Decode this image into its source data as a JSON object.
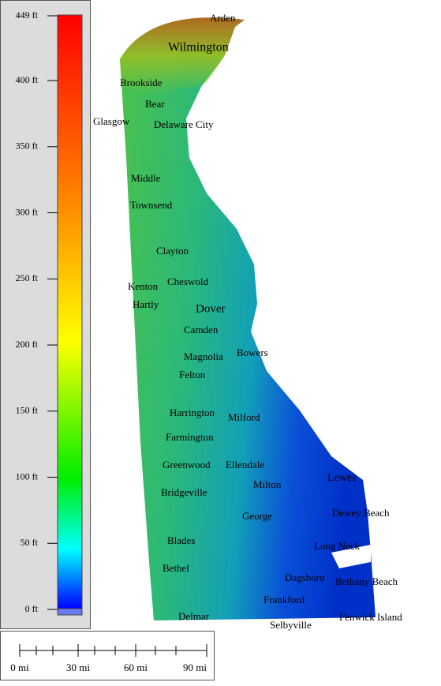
{
  "legend": {
    "min": 0,
    "max": 449,
    "ticks": [
      {
        "value": 449,
        "label": "449 ft"
      },
      {
        "value": 400,
        "label": "400 ft"
      },
      {
        "value": 350,
        "label": "350 ft"
      },
      {
        "value": 300,
        "label": "300 ft"
      },
      {
        "value": 250,
        "label": "250 ft"
      },
      {
        "value": 200,
        "label": "200 ft"
      },
      {
        "value": 150,
        "label": "150 ft"
      },
      {
        "value": 100,
        "label": "100 ft"
      },
      {
        "value": 50,
        "label": "50 ft"
      },
      {
        "value": 0,
        "label": "0 ft"
      }
    ]
  },
  "places": [
    "Arden",
    "Wilmington",
    "Brookside",
    "Bear",
    "Glasgow",
    "Delaware City",
    "Middle",
    "Townsend",
    "Clayton",
    "Kenton",
    "Cheswold",
    "Hartly",
    "Dover",
    "Camden",
    "Bowers",
    "Magnolia",
    "Felton",
    "Harrington",
    "Milford",
    "Farmington",
    "Greenwood",
    "Ellendale",
    "Milton",
    "Lewes",
    "Bridgeville",
    "George",
    "Dewey Beach",
    "Blades",
    "Long Neck",
    "Bethel",
    "Dagsboro",
    "Bethany Beach",
    "Frankford",
    "Delmar",
    "Selbyville",
    "Fenwick Island"
  ],
  "scale": [
    "0 mi",
    "30 mi",
    "60 mi",
    "90 mi"
  ]
}
